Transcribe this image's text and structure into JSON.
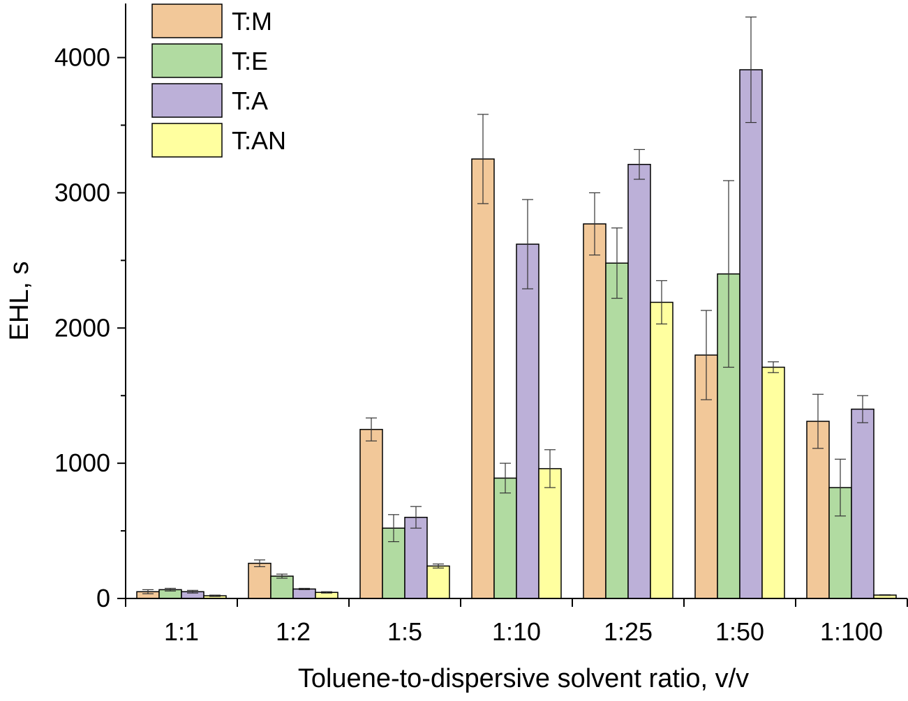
{
  "chart_data": {
    "type": "bar",
    "xlabel": "Toluene-to-dispersive solvent ratio, v/v",
    "ylabel": "EHL, s",
    "categories": [
      "1:1",
      "1:2",
      "1:5",
      "1:10",
      "1:25",
      "1:50",
      "1:100"
    ],
    "ylim": [
      0,
      4400
    ],
    "yticks": [
      0,
      1000,
      2000,
      3000,
      4000
    ],
    "grid": false,
    "legend_position": "top-left",
    "series": [
      {
        "name": "T:M",
        "color": "#f2c899",
        "values": [
          50,
          260,
          1250,
          3250,
          2770,
          1800,
          1310
        ],
        "errors": [
          15,
          25,
          85,
          330,
          230,
          330,
          200
        ]
      },
      {
        "name": "T:E",
        "color": "#b1dba1",
        "values": [
          65,
          165,
          520,
          890,
          2480,
          2400,
          820
        ],
        "errors": [
          10,
          15,
          100,
          110,
          260,
          690,
          210
        ]
      },
      {
        "name": "T:A",
        "color": "#bcb0d8",
        "values": [
          50,
          70,
          600,
          2620,
          3210,
          3910,
          1400
        ],
        "errors": [
          10,
          5,
          80,
          330,
          110,
          390,
          100
        ]
      },
      {
        "name": "T:AN",
        "color": "#ffff9f",
        "values": [
          20,
          45,
          240,
          960,
          2190,
          1710,
          25
        ],
        "errors": [
          5,
          5,
          15,
          140,
          160,
          40,
          3
        ]
      }
    ]
  }
}
